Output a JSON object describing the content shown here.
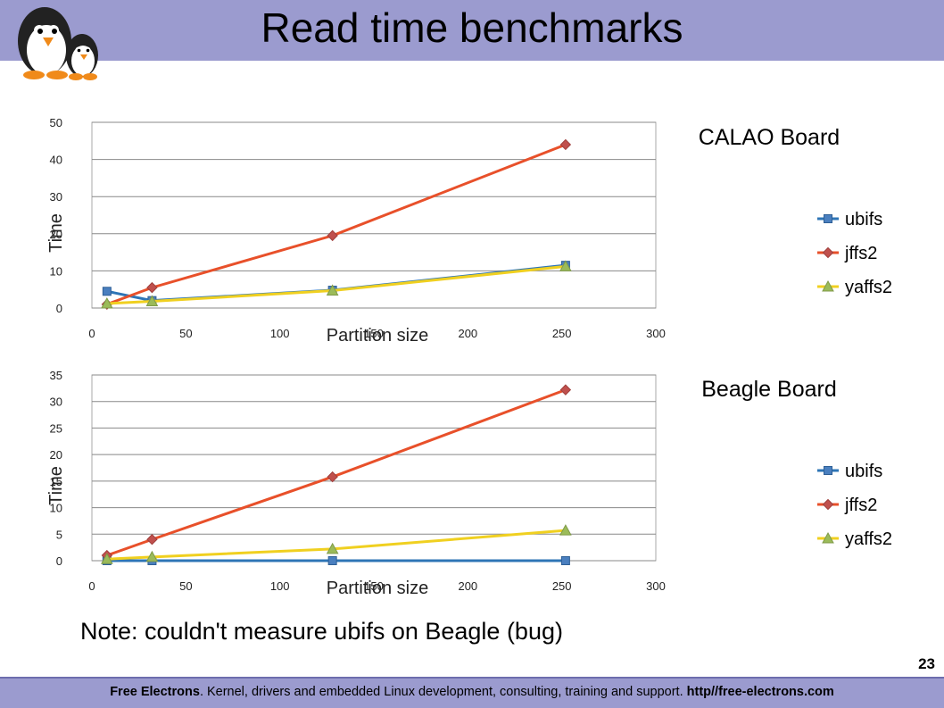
{
  "slide": {
    "title": "Read time benchmarks",
    "note": "Note: couldn't measure ubifs on Beagle (bug)",
    "page_number": "23",
    "footer": {
      "brand": "Free Electrons",
      "description": ". Kernel, drivers and embedded Linux development, consulting, training and support. ",
      "url": "http//free-electrons.com"
    },
    "logo_icon": "penguin-logo-icon"
  },
  "colors": {
    "header_bar": "#9b9bcf",
    "ubifs": "#2e75b6",
    "jffs2": "#e8502a",
    "yaffs2": "#f0d020",
    "gridline": "#888888"
  },
  "chart_data": [
    {
      "type": "line",
      "title": "CALAO Board",
      "xlabel": "Partition size",
      "ylabel": "Time",
      "xlim": [
        0,
        300
      ],
      "ylim": [
        0,
        50
      ],
      "xticks": [
        0,
        50,
        100,
        150,
        200,
        250,
        300
      ],
      "yticks": [
        0,
        10,
        20,
        30,
        40,
        50
      ],
      "grid": true,
      "legend_position": "right",
      "series": [
        {
          "name": "ubifs",
          "color": "#2e75b6",
          "marker": "square",
          "x": [
            8,
            32,
            128,
            252
          ],
          "y": [
            4.5,
            2,
            4.8,
            11.5
          ]
        },
        {
          "name": "jffs2",
          "color": "#e8502a",
          "marker": "diamond",
          "x": [
            8,
            32,
            128,
            252
          ],
          "y": [
            1,
            5.5,
            19.5,
            44
          ]
        },
        {
          "name": "yaffs2",
          "color": "#f0d020",
          "marker": "triangle",
          "x": [
            8,
            32,
            128,
            252
          ],
          "y": [
            1.2,
            1.8,
            4.7,
            11.2
          ]
        }
      ]
    },
    {
      "type": "line",
      "title": "Beagle Board",
      "xlabel": "Partition size",
      "ylabel": "Time",
      "xlim": [
        0,
        300
      ],
      "ylim": [
        0,
        35
      ],
      "xticks": [
        0,
        50,
        100,
        150,
        200,
        250,
        300
      ],
      "yticks": [
        0,
        5,
        10,
        15,
        20,
        25,
        30,
        35
      ],
      "grid": true,
      "legend_position": "right",
      "series": [
        {
          "name": "ubifs",
          "color": "#2e75b6",
          "marker": "square",
          "x": [
            8,
            32,
            128,
            252
          ],
          "y": [
            0,
            0,
            0,
            0
          ]
        },
        {
          "name": "jffs2",
          "color": "#e8502a",
          "marker": "diamond",
          "x": [
            8,
            32,
            128,
            252
          ],
          "y": [
            1,
            4,
            15.8,
            32.2
          ]
        },
        {
          "name": "yaffs2",
          "color": "#f0d020",
          "marker": "triangle",
          "x": [
            8,
            32,
            128,
            252
          ],
          "y": [
            0.3,
            0.7,
            2.2,
            5.7
          ]
        }
      ]
    }
  ]
}
